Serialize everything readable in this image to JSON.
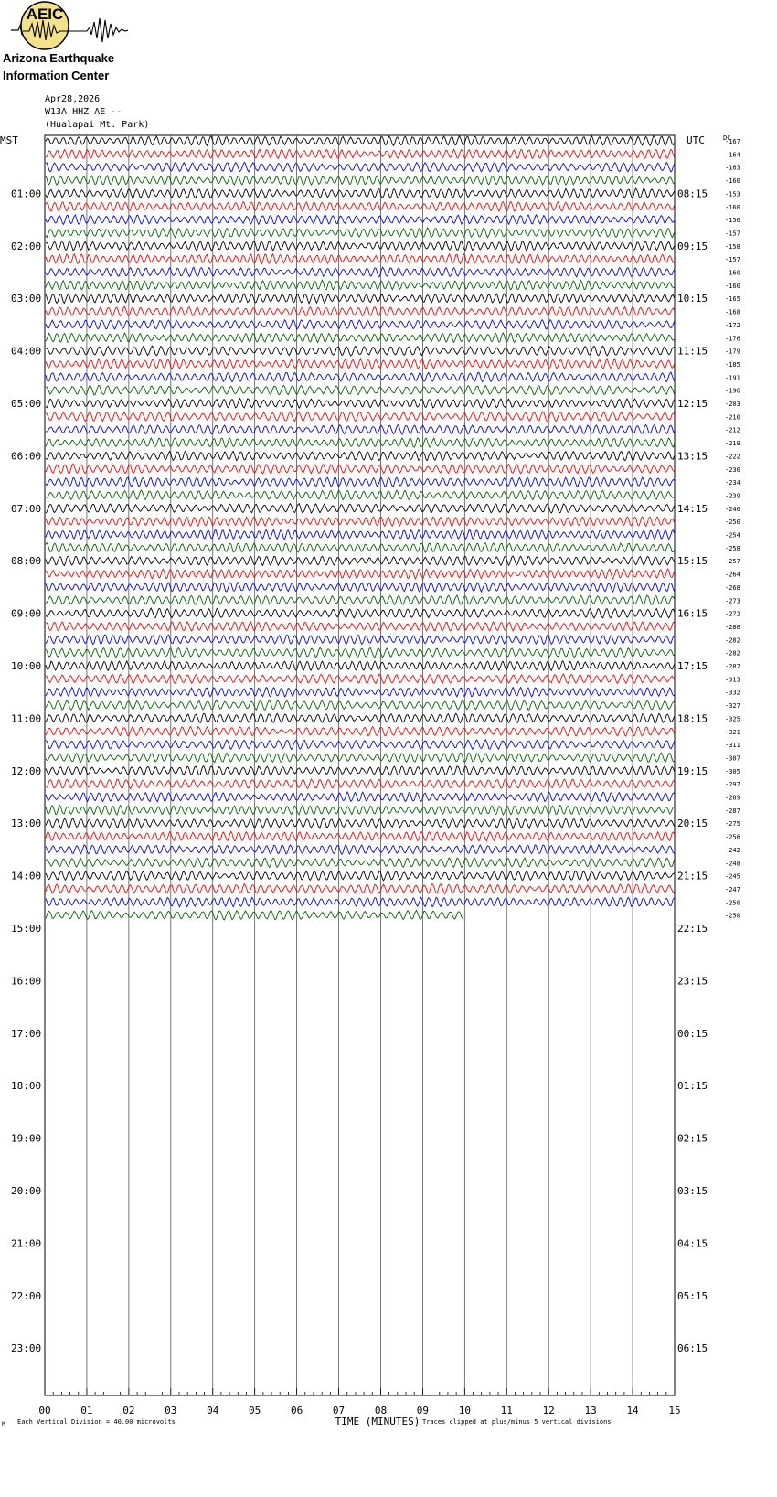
{
  "org": {
    "logo_text": "AEIC",
    "name_line1": "Arizona Earthquake",
    "name_line2": "Information Center"
  },
  "header": {
    "date": "Apr28,2026",
    "station": "W13A HHZ AE --",
    "site": "(Hualapai Mt. Park)"
  },
  "chart_data": {
    "type": "line",
    "description_free": true,
    "left_label": "MST",
    "right_label": "UTC",
    "dc_label": "DC",
    "xlabel": "TIME (MINUTES)",
    "x_ticks": [
      "00",
      "01",
      "02",
      "03",
      "04",
      "05",
      "06",
      "07",
      "08",
      "09",
      "10",
      "11",
      "12",
      "13",
      "14",
      "15"
    ],
    "xlim": [
      0,
      15
    ],
    "mst_hours": [
      "01:00",
      "02:00",
      "03:00",
      "04:00",
      "05:00",
      "06:00",
      "07:00",
      "08:00",
      "09:00",
      "10:00",
      "11:00",
      "12:00",
      "13:00",
      "14:00",
      "15:00",
      "16:00",
      "17:00",
      "18:00",
      "19:00",
      "20:00",
      "21:00",
      "22:00",
      "23:00"
    ],
    "utc_hours": [
      "08:15",
      "09:15",
      "10:15",
      "11:15",
      "12:15",
      "13:15",
      "14:15",
      "15:15",
      "16:15",
      "17:15",
      "18:15",
      "19:15",
      "20:15",
      "21:15",
      "22:15",
      "23:15",
      "00:15",
      "01:15",
      "02:15",
      "03:15",
      "04:15",
      "05:15",
      "06:15"
    ],
    "trace_colors": [
      "#000000",
      "#ff0000",
      "#0000ff",
      "#006400"
    ],
    "dc_offsets": [
      -167,
      -164,
      -163,
      -160,
      -153,
      -160,
      -156,
      -157,
      -158,
      -157,
      -160,
      -160,
      -165,
      -168,
      -172,
      -176,
      -179,
      -185,
      -191,
      -196,
      -203,
      -210,
      -212,
      -219,
      -222,
      -230,
      -234,
      -239,
      -246,
      -250,
      -254,
      -258,
      -257,
      -264,
      -268,
      -273,
      -272,
      -280,
      -282,
      -282,
      -287,
      -313,
      -332,
      -327,
      -325,
      -321,
      -311,
      -307,
      -305,
      -297,
      -289,
      -287,
      -275,
      -256,
      -242,
      -248,
      -245,
      -247,
      -250,
      -250
    ],
    "last_trace_end_minute": 10,
    "footer_left": "Each Vertical Division =    40.00 microvolts",
    "footer_right": "Traces clipped at plus/minus 5 vertical divisions",
    "corner_mark": "M"
  }
}
